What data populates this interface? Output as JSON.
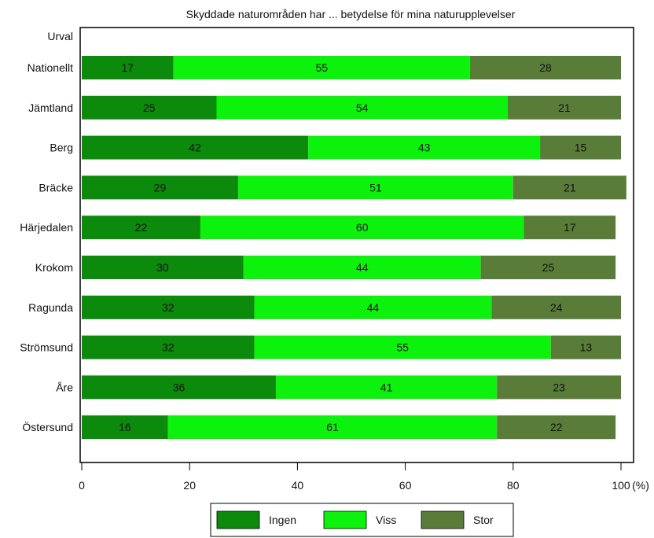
{
  "chart_data": {
    "type": "bar",
    "orientation": "horizontal",
    "stacked": true,
    "title": "Skyddade naturområden har ... betydelse för mina naturupplevelser",
    "category_header": "Urval",
    "categories": [
      "Nationellt",
      "Jämtland",
      "Berg",
      "Bräcke",
      "Härjedalen",
      "Krokom",
      "Ragunda",
      "Strömsund",
      "Åre",
      "Östersund"
    ],
    "series": [
      {
        "name": "Ingen",
        "color": "#0b8a0b",
        "values": [
          17,
          25,
          42,
          29,
          22,
          30,
          32,
          32,
          36,
          16
        ]
      },
      {
        "name": "Viss",
        "color": "#0cf20c",
        "values": [
          55,
          54,
          43,
          51,
          60,
          44,
          44,
          55,
          41,
          61
        ]
      },
      {
        "name": "Stor",
        "color": "#5a7c39",
        "values": [
          28,
          21,
          15,
          21,
          17,
          25,
          24,
          13,
          23,
          22
        ]
      }
    ],
    "x_ticks": [
      "0",
      "20",
      "40",
      "60",
      "80",
      "100"
    ],
    "x_unit": "(%)",
    "xlim": [
      0,
      100
    ],
    "grid": false,
    "legend_position": "bottom"
  }
}
